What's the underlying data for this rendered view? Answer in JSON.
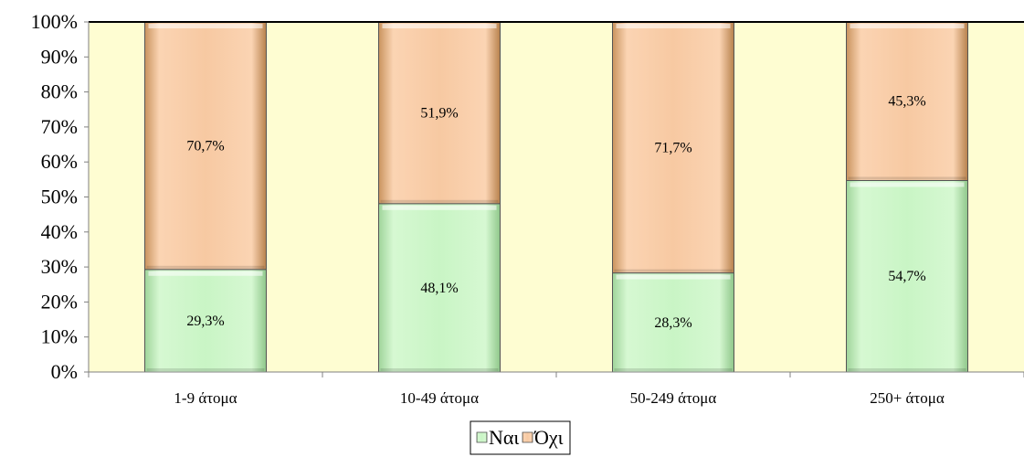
{
  "chart_data": {
    "type": "bar",
    "stacked": true,
    "percent": true,
    "categories": [
      "1-9 άτομα",
      "10-49 άτομα",
      "50-249 άτομα",
      "250+ άτομα"
    ],
    "series": [
      {
        "name": "Ναι",
        "values": [
          29.3,
          48.1,
          28.3,
          54.7
        ],
        "labels": [
          "29,3%",
          "48,1%",
          "28,3%",
          "54,7%"
        ],
        "color": "#c9f5c5"
      },
      {
        "name": "Όχι",
        "values": [
          70.7,
          51.9,
          71.7,
          45.3
        ],
        "labels": [
          "70,7%",
          "51,9%",
          "71,7%",
          "45,3%"
        ],
        "color": "#f7c9a2"
      }
    ],
    "y_ticks": [
      "0%",
      "10%",
      "20%",
      "30%",
      "40%",
      "50%",
      "60%",
      "70%",
      "80%",
      "90%",
      "100%"
    ],
    "ylim": [
      0,
      100
    ],
    "plot_background": "#fefdd2",
    "legend_position": "bottom",
    "grid": false
  }
}
